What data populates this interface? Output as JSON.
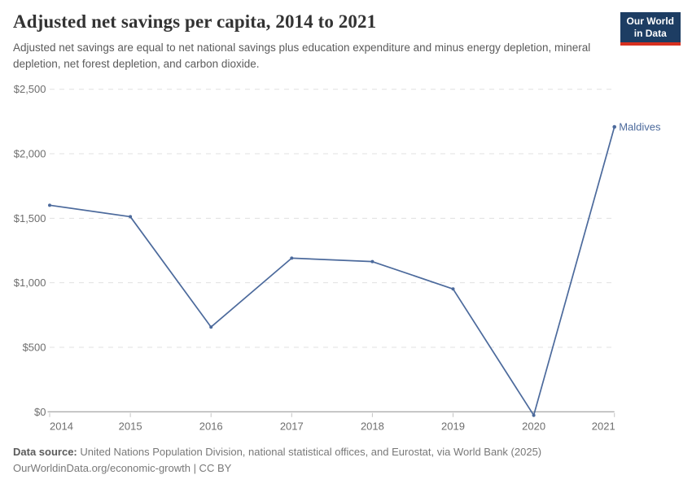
{
  "header": {
    "title": "Adjusted net savings per capita, 2014 to 2021",
    "subtitle": "Adjusted net savings are equal to net national savings plus education expenditure and minus energy depletion, mineral depletion, net forest depletion, and carbon dioxide."
  },
  "logo": {
    "line1": "Our World",
    "line2": "in Data",
    "bg_color": "#1d3d63",
    "accent_color": "#d7301f"
  },
  "chart_data": {
    "type": "line",
    "title": "Adjusted net savings per capita, 2014 to 2021",
    "xlabel": "",
    "ylabel": "",
    "x": [
      2014,
      2015,
      2016,
      2017,
      2018,
      2019,
      2020,
      2021
    ],
    "series": [
      {
        "name": "Maldives",
        "color": "#4C6A9C",
        "values": [
          1601,
          1512,
          657,
          1191,
          1164,
          952,
          -27,
          2208
        ]
      }
    ],
    "x_ticks": [
      2014,
      2015,
      2016,
      2017,
      2018,
      2019,
      2020,
      2021
    ],
    "y_ticks": [
      0,
      500,
      1000,
      1500,
      2000,
      2500
    ],
    "y_tick_prefix": "$",
    "xlim": [
      2014,
      2021
    ],
    "ylim": [
      0,
      2500
    ],
    "grid": "horizontal-dashed",
    "legend_position": "end-of-line-label",
    "gridline_color": "#e0e0e0",
    "axis_color": "#8f8f8f",
    "tick_mark_color": "#c4c4c4",
    "tick_label_color": "#6e6e6e"
  },
  "footer": {
    "datasource_label": "Data source:",
    "datasource_text": " United Nations Population Division, national statistical offices, and Eurostat, via World Bank (2025)",
    "link_line": "OurWorldinData.org/economic-growth | CC BY"
  }
}
